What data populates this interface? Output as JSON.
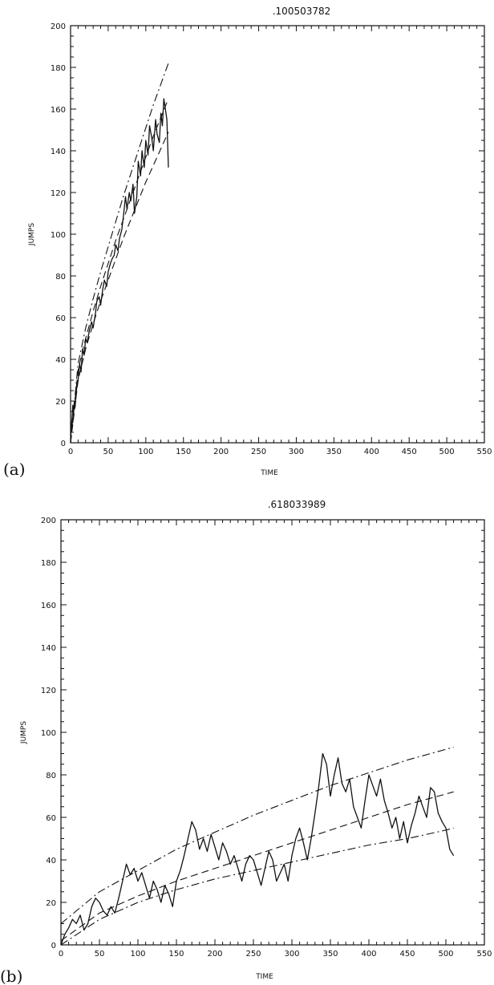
{
  "chart_data": [
    {
      "panel_label": "(a)",
      "type": "line",
      "title": ".100503782",
      "xlabel": "TIME",
      "ylabel": "JUMPS",
      "xlim": [
        0,
        550
      ],
      "ylim": [
        0,
        200
      ],
      "xticks": [
        0,
        50,
        100,
        150,
        200,
        250,
        300,
        350,
        400,
        450,
        500,
        550
      ],
      "yticks": [
        0,
        20,
        40,
        60,
        80,
        100,
        120,
        140,
        160,
        180,
        200
      ],
      "grid": false,
      "series": [
        {
          "style": "solid",
          "x": [
            0,
            1,
            2,
            3,
            4,
            5,
            6,
            8,
            10,
            12,
            14,
            16,
            18,
            20,
            22,
            25,
            28,
            30,
            33,
            35,
            38,
            40,
            43,
            45,
            48,
            50,
            53,
            55,
            58,
            60,
            63,
            65,
            68,
            70,
            73,
            75,
            78,
            80,
            83,
            85,
            88,
            90,
            93,
            95,
            98,
            100,
            103,
            105,
            108,
            110,
            113,
            115,
            118,
            120,
            122,
            124,
            126,
            128,
            130
          ],
          "y": [
            0,
            8,
            12,
            18,
            14,
            20,
            17,
            26,
            30,
            38,
            34,
            45,
            42,
            50,
            48,
            54,
            58,
            55,
            62,
            68,
            70,
            66,
            74,
            78,
            75,
            82,
            86,
            88,
            90,
            95,
            92,
            98,
            102,
            108,
            118,
            112,
            120,
            116,
            124,
            110,
            118,
            135,
            128,
            140,
            132,
            145,
            138,
            152,
            146,
            140,
            155,
            148,
            144,
            158,
            152,
            165,
            160,
            155,
            132
          ]
        },
        {
          "style": "dashed",
          "x": [
            0,
            10,
            20,
            30,
            40,
            50,
            60,
            70,
            80,
            90,
            100,
            110,
            120,
            130
          ],
          "y": [
            0,
            30,
            45,
            57,
            68,
            78,
            88,
            98,
            107,
            116,
            125,
            133,
            141,
            149
          ]
        },
        {
          "style": "dashed",
          "x": [
            0,
            10,
            20,
            30,
            40,
            50,
            60,
            70,
            80,
            90,
            100,
            110,
            120,
            130
          ],
          "y": [
            0,
            35,
            50,
            63,
            75,
            86,
            97,
            107,
            117,
            127,
            137,
            147,
            156,
            165
          ]
        },
        {
          "style": "dash-dot",
          "x": [
            0,
            10,
            20,
            30,
            40,
            50,
            60,
            70,
            80,
            90,
            100,
            110,
            120,
            130
          ],
          "y": [
            0,
            38,
            55,
            69,
            82,
            94,
            106,
            118,
            129,
            140,
            151,
            162,
            172,
            182
          ]
        }
      ]
    },
    {
      "panel_label": "(b)",
      "type": "line",
      "title": ".618033989",
      "xlabel": "TIME",
      "ylabel": "JUMPS",
      "xlim": [
        0,
        550
      ],
      "ylim": [
        0,
        200
      ],
      "xticks": [
        0,
        50,
        100,
        150,
        200,
        250,
        300,
        350,
        400,
        450,
        500,
        550
      ],
      "yticks": [
        0,
        20,
        40,
        60,
        80,
        100,
        120,
        140,
        160,
        180,
        200
      ],
      "grid": false,
      "series": [
        {
          "style": "solid",
          "x": [
            0,
            5,
            10,
            15,
            20,
            25,
            30,
            35,
            40,
            45,
            50,
            55,
            60,
            65,
            70,
            75,
            80,
            85,
            90,
            95,
            100,
            105,
            110,
            115,
            120,
            125,
            130,
            135,
            140,
            145,
            150,
            155,
            160,
            165,
            170,
            175,
            180,
            185,
            190,
            195,
            200,
            205,
            210,
            215,
            220,
            225,
            230,
            235,
            240,
            245,
            250,
            255,
            260,
            265,
            270,
            275,
            280,
            285,
            290,
            295,
            300,
            305,
            310,
            315,
            320,
            325,
            330,
            335,
            340,
            345,
            350,
            355,
            360,
            365,
            370,
            375,
            380,
            385,
            390,
            395,
            400,
            405,
            410,
            415,
            420,
            425,
            430,
            435,
            440,
            445,
            450,
            455,
            460,
            465,
            470,
            475,
            480,
            485,
            490,
            495,
            500,
            505,
            510
          ],
          "y": [
            0,
            5,
            8,
            12,
            10,
            14,
            7,
            10,
            18,
            22,
            20,
            16,
            14,
            18,
            15,
            22,
            30,
            38,
            33,
            36,
            30,
            34,
            28,
            22,
            30,
            26,
            20,
            28,
            24,
            18,
            30,
            35,
            42,
            50,
            58,
            54,
            45,
            50,
            44,
            52,
            46,
            40,
            48,
            44,
            38,
            42,
            36,
            30,
            38,
            42,
            40,
            34,
            28,
            36,
            44,
            40,
            30,
            34,
            38,
            30,
            42,
            50,
            55,
            48,
            40,
            50,
            62,
            75,
            90,
            85,
            70,
            80,
            88,
            76,
            72,
            78,
            65,
            60,
            55,
            68,
            80,
            75,
            70,
            78,
            68,
            62,
            55,
            60,
            50,
            58,
            48,
            56,
            62,
            70,
            65,
            60,
            74,
            72,
            62,
            58,
            55,
            45,
            42
          ]
        },
        {
          "style": "dashed",
          "x": [
            0,
            50,
            100,
            150,
            200,
            250,
            300,
            350,
            400,
            450,
            500,
            510
          ],
          "y": [
            2,
            15,
            23,
            30,
            36,
            42,
            48,
            54,
            60,
            66,
            71,
            72
          ]
        },
        {
          "style": "dash-dot",
          "x": [
            0,
            50,
            100,
            150,
            200,
            250,
            300,
            350,
            400,
            450,
            500,
            510
          ],
          "y": [
            10,
            25,
            35,
            45,
            53,
            61,
            68,
            75,
            81,
            87,
            92,
            93
          ]
        },
        {
          "style": "dash-dot",
          "x": [
            0,
            50,
            100,
            150,
            200,
            250,
            300,
            350,
            400,
            450,
            500,
            510
          ],
          "y": [
            0,
            12,
            20,
            26,
            31,
            35,
            39,
            43,
            47,
            50,
            54,
            55
          ]
        }
      ]
    }
  ]
}
